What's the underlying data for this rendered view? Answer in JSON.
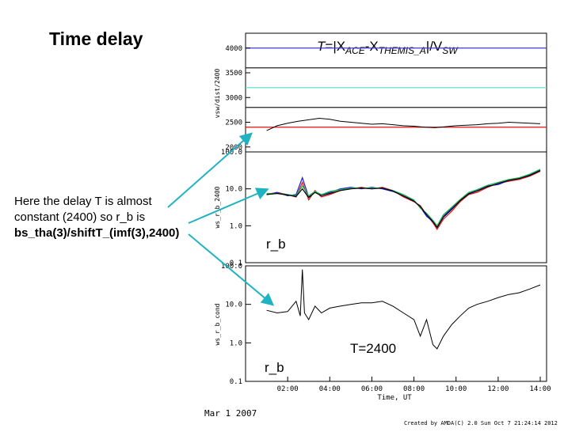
{
  "slide": {
    "title": "Time delay",
    "note_lines": [
      "Here the delay T is almost",
      "constant (2400) so r_b is",
      "bs_tha(3)/shiftT_(imf(3),2400)"
    ]
  },
  "footer": {
    "date": "Mar  1 2007",
    "credit": "Created by AMDA(C)  2.0 Sun Oct  7 21:24:14 2012"
  },
  "colors": {
    "arrow": "#1fb3c2",
    "trace_black": "#000000",
    "trace_red": "#e8141b",
    "trace_green": "#17b84a",
    "trace_blue": "#1a1ae6",
    "line_blue": "#3b3bd6",
    "line_teal": "#5fe0c8",
    "line_red": "#e01010",
    "line_black": "#222222"
  },
  "chart_data": [
    {
      "type": "line",
      "panel": "top",
      "annotation": {
        "T": "T",
        "eq": "=|X",
        "ACE": "ACE",
        "minus": "-X",
        "THEMIS": "THEMIS_A",
        "bar": "|/V",
        "SW": "SW"
      },
      "ylabel": "vsw/dist/2400",
      "ylim": [
        1900,
        4300
      ],
      "yticks": [
        "2000",
        "2500",
        "3000",
        "3500",
        "4000"
      ],
      "hlines": [
        {
          "y": 4000,
          "color": "#3b3bd6"
        },
        {
          "y": 3600,
          "color": "#222222"
        },
        {
          "y": 3200,
          "color": "#5fe0c8"
        },
        {
          "y": 2800,
          "color": "#222222"
        },
        {
          "y": 2400,
          "color": "#e01010"
        }
      ],
      "x_hours": [
        1.0,
        1.5,
        2.0,
        2.5,
        3.0,
        3.5,
        4.0,
        4.5,
        5.0,
        5.5,
        6.0,
        6.5,
        7.0,
        7.5,
        8.0,
        8.5,
        9.0,
        9.5,
        10.0,
        10.5,
        11.0,
        11.5,
        12.0,
        12.5,
        13.0,
        13.5,
        14.0
      ],
      "values": [
        2330,
        2430,
        2480,
        2520,
        2550,
        2580,
        2560,
        2520,
        2500,
        2480,
        2460,
        2470,
        2450,
        2430,
        2420,
        2400,
        2390,
        2410,
        2430,
        2440,
        2450,
        2470,
        2480,
        2500,
        2490,
        2480,
        2470
      ]
    },
    {
      "type": "line",
      "panel": "middle",
      "ylabel": "ws_r_b_2400",
      "yscale": "log",
      "ylim": [
        0.1,
        100
      ],
      "yticks": [
        "0.1",
        "1.0",
        "10.0",
        "100.0"
      ],
      "label": "r_b",
      "x_hours": [
        1.0,
        1.5,
        2.0,
        2.4,
        2.7,
        3.0,
        3.3,
        3.6,
        4.0,
        4.5,
        5.0,
        5.5,
        6.0,
        6.5,
        7.0,
        7.5,
        8.0,
        8.3,
        8.6,
        8.9,
        9.1,
        9.4,
        9.8,
        10.2,
        10.6,
        11.0,
        11.5,
        12.0,
        12.5,
        13.0,
        13.5,
        14.0
      ],
      "series": [
        {
          "color": "#e8141b",
          "values": [
            7,
            8,
            7,
            6,
            15,
            5,
            9,
            6,
            7,
            9,
            10,
            11,
            10,
            11,
            9,
            6,
            4.5,
            3.5,
            2.0,
            1.2,
            0.8,
            1.5,
            2.5,
            4.5,
            7,
            8,
            11,
            14,
            16,
            18,
            22,
            30
          ]
        },
        {
          "color": "#1a1ae6",
          "values": [
            7,
            8,
            6.5,
            7,
            20,
            6,
            8,
            7,
            8,
            10,
            11,
            10,
            11,
            10,
            8.5,
            6.5,
            4.8,
            3.2,
            1.8,
            1.3,
            0.9,
            1.8,
            3.0,
            5,
            7.5,
            9,
            12,
            13,
            17,
            19,
            24,
            32
          ]
        },
        {
          "color": "#17b84a",
          "values": [
            7.5,
            7.5,
            7,
            6.5,
            12,
            6.5,
            8.5,
            7,
            8.5,
            9.5,
            10.5,
            10.5,
            10.5,
            10.5,
            9,
            7,
            5,
            3.0,
            2.2,
            1.4,
            1.0,
            2.0,
            3.2,
            5.2,
            8,
            9.5,
            12.5,
            15,
            18,
            20,
            25,
            34
          ]
        },
        {
          "color": "#000000",
          "values": [
            7,
            7.5,
            6.8,
            6.2,
            10,
            5.8,
            8,
            6.5,
            7.5,
            9,
            10,
            10.5,
            10,
            10.5,
            8.8,
            6.4,
            4.6,
            3.3,
            2.0,
            1.3,
            0.9,
            1.7,
            2.8,
            4.8,
            7.3,
            8.7,
            11.5,
            14,
            17,
            19,
            23,
            31
          ]
        }
      ]
    },
    {
      "type": "line",
      "panel": "bottom",
      "ylabel": "ws_r_b_cond",
      "yscale": "log",
      "ylim": [
        0.1,
        100
      ],
      "yticks": [
        "0.1",
        "1.0",
        "10.0",
        "100.0"
      ],
      "label": "r_b",
      "annotation": "T=2400",
      "xlabel": "Time, UT",
      "xticks": [
        "02:00",
        "04:00",
        "06:00",
        "08:00",
        "10:00",
        "12:00",
        "14:00"
      ],
      "x_hours": [
        1.0,
        1.5,
        2.0,
        2.4,
        2.6,
        2.7,
        2.8,
        3.0,
        3.3,
        3.6,
        4.0,
        4.5,
        5.0,
        5.5,
        6.0,
        6.5,
        7.0,
        7.5,
        8.0,
        8.3,
        8.6,
        8.9,
        9.1,
        9.4,
        9.8,
        10.2,
        10.6,
        11.0,
        11.5,
        12.0,
        12.5,
        13.0,
        13.5,
        14.0
      ],
      "values": [
        7,
        6,
        6.5,
        12,
        5,
        80,
        6,
        4,
        9,
        6,
        8,
        9,
        10,
        11,
        11,
        12,
        9,
        6,
        4,
        1.5,
        4,
        0.9,
        0.7,
        1.5,
        3,
        5,
        8,
        10,
        12,
        15,
        18,
        20,
        25,
        32
      ]
    }
  ]
}
